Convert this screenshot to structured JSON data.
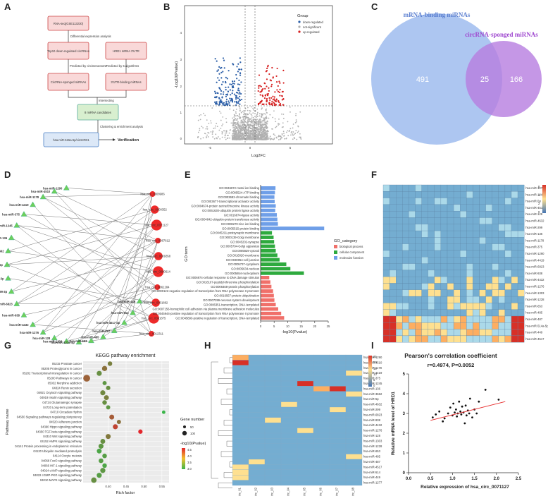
{
  "panels": {
    "A": "A",
    "B": "B",
    "C": "C",
    "D": "D",
    "E": "E",
    "F": "F",
    "G": "G",
    "H": "H",
    "I": "I"
  },
  "flowchart": {
    "box1": "RNA-seq(GSE113230)",
    "step1": "Differential expression analysis",
    "box2a": "Top10 down-regulated circRNAs",
    "box2b": "HRD1 mRNA 3'UTR",
    "pred_a": "Predicted by circinteractome",
    "pred_b": "Predicted by 5 algorithms",
    "box3a": "CircRNA-sponged miRNAs",
    "box3b": "3'UTR-binding miRNAs",
    "step2": "Intersecting",
    "box4": "8 miRNA candidates",
    "step3": "Clustering & enrichment analysis",
    "box5": "hsa-miR-515a-5p/circHRD1",
    "verify": "Verification"
  },
  "volcano": {
    "ylabel": "-Log10(Pvalue)",
    "xlabel": "Log2FC",
    "legend_title": "Group",
    "groups": [
      "down-regulated",
      "not-significant",
      "up-regulated"
    ],
    "colors": [
      "#2c5fa8",
      "#b0b0b0",
      "#d62020"
    ],
    "xticks": [
      "-5",
      "0",
      "5"
    ],
    "yticks": [
      "0",
      "1",
      "2",
      "3",
      "4"
    ]
  },
  "venn": {
    "left_label": "mRNA-binding miRNAs",
    "right_label": "circRNA-sponged miRNAs",
    "left_only": "491",
    "overlap": "25",
    "right_only": "166"
  },
  "network": {
    "labels": [
      "hsa-miR-1290",
      "hsa-miR-4510",
      "hsa-miR-1178",
      "hsa-miR-4419",
      "hsa-miR-375",
      "hsa-miR-1245",
      "hsa-miR-136",
      "hsa-miR-3662",
      "hsa-miR-5p",
      "hsa-miR-4632p-3p",
      "hsa-miR-299-3p",
      "hsa-miR-6823",
      "hsa-miR-938",
      "hsa-miR-4432",
      "hsa-miR-1276",
      "hsa-miR-128",
      "hsa-miR-1303",
      "hsa-miR-1228-5p",
      "hsa-miR-653",
      "hsa-miR-485",
      "hsa-miR-487",
      "hsa-miR-4517-3p",
      "hsa-miR-514",
      "hsa-miR-449",
      "hsa_circ_0008986",
      "hsa_circ_0000352",
      "hsa_circ_0071127",
      "hsa_circ_0067612",
      "hsa_circ_0009358",
      "hsa_circ_0000614",
      "hsa_circ_0061284",
      "hsa_circ_0001882",
      "hsa_circ_0061875",
      "hsa_circ_0012311"
    ]
  },
  "chart_data": [
    {
      "type": "bar",
      "title": "",
      "xlabel": "-log10(Pvalue)",
      "ylabel": "GO term",
      "xlim": [
        0,
        25
      ],
      "xticks": [
        "0",
        "5",
        "10",
        "15",
        "20",
        "25"
      ],
      "legend_title": "GO_category",
      "legend": [
        "biological process",
        "cellular component",
        "molecular function"
      ],
      "colors": {
        "biological process": "#f0706a",
        "cellular component": "#2eaa3e",
        "molecular function": "#6f9fe8"
      },
      "categories": [
        "GO:0046872-metal ion binding",
        "GO:0005524-ATP binding",
        "GO:0003682-chromatin binding",
        "GO:0003677-transcriptional activator activity",
        "GO:0004674-protein serine/threonine kinase activity",
        "GO:0061630-ubiquitin protein ligase activity",
        "GO:0016874-ligase activity",
        "GO:0004842-ubiquitin-protein transferase activity",
        "GO:0008270-zinc ion binding",
        "GO:0005515-protein binding",
        "GO:0045211-postsynaptic membrane",
        "GO:0000139-Golgi membrane",
        "GO:0045202-synapse",
        "GO:0005794-Golgi apparatus",
        "GO:0005829-cytosol",
        "GO:0016020-membrane",
        "GO:0030054-cell junction",
        "GO:0005737-cytoplasm",
        "GO:0005634-nucleus",
        "GO:0005654-nucleoplasm",
        "GO:0006974-cellular response to DNA damage stimulus",
        "GO:0018107-peptidyl-threonine phosphorylation",
        "GO:0006468-protein phosphorylation",
        "GO:0000122-negative regulation of transcription from RNA polymerase II promoter",
        "GO:0016567-protein ubiquitination",
        "GO:0007399-nervous system development",
        "GO:0006351-transcription, DNA-templated",
        "GO:0007156-homophilic cell adhesion via plasma membrane adhesion molecules",
        "GO:0045944-positive regulation of transcription from RNA polymerase II promoter",
        "GO:0045893-positive regulation of transcription, DNA-templated"
      ],
      "groups": [
        "molecular function",
        "molecular function",
        "molecular function",
        "molecular function",
        "molecular function",
        "molecular function",
        "molecular function",
        "molecular function",
        "molecular function",
        "molecular function",
        "cellular component",
        "cellular component",
        "cellular component",
        "cellular component",
        "cellular component",
        "cellular component",
        "cellular component",
        "cellular component",
        "cellular component",
        "cellular component",
        "biological process",
        "biological process",
        "biological process",
        "biological process",
        "biological process",
        "biological process",
        "biological process",
        "biological process",
        "biological process",
        "biological process"
      ],
      "values": [
        5.5,
        5.3,
        5.1,
        5.2,
        5.6,
        5.4,
        6.0,
        6.2,
        6.4,
        23.5,
        4.2,
        4.8,
        5.0,
        5.3,
        5.6,
        6.2,
        7.0,
        9.5,
        11.0,
        16.0,
        3.2,
        3.6,
        4.0,
        4.6,
        4.9,
        5.1,
        5.6,
        6.5,
        7.6,
        8.7
      ]
    },
    {
      "type": "scatter",
      "title": "KEGG pathway enrichment",
      "xlabel": "Rich factor",
      "ylabel": "Pathway name",
      "xlim": [
        0.33,
        0.57
      ],
      "xticks": [
        "0.40",
        "0.45",
        "0.50",
        "0.55"
      ],
      "size_legend_title": "Gene number",
      "size_legend": [
        "50",
        "100"
      ],
      "color_legend_title": "-log10(Pvalue)",
      "color_legend": [
        "4.5",
        "4.0",
        "3.5",
        "3.0"
      ],
      "categories": [
        "05215 Prostate cancer",
        "05205 Proteoglycans in cancer",
        "05202 Transcriptional misregulation in cancer",
        "05200 Pathways in cancer",
        "05032 Morphine addiction",
        "04824 Renin secretion",
        "04921 Oxytocin signaling pathway",
        "04919 Insulin signaling pathway",
        "04724 Glutamatergic synapse",
        "04720 Long-term potentiation",
        "04710 Circadian rhythm",
        "04550 Signaling pathways regulating pluripotency",
        "04520 Adherens junction",
        "04390 Hippo signaling pathway",
        "04350 TGF-beta signaling pathway",
        "04310 Wnt signaling pathway",
        "04152 AMPK signaling pathway",
        "04141 Protein processing in endoplasmic reticulum",
        "04120 Ubiquitin mediated proteolysis",
        "04114 Oocyte meiosis",
        "04068 FoxO signaling pathway",
        "04066 HIF-1 signaling pathway",
        "04024 cAMP signaling pathway",
        "04022 cGMP-PKG signaling pathway",
        "04010 MAPK signaling pathway"
      ],
      "x": [
        0.405,
        0.39,
        0.375,
        0.34,
        0.39,
        0.4,
        0.385,
        0.395,
        0.39,
        0.4,
        0.555,
        0.41,
        0.43,
        0.42,
        0.49,
        0.4,
        0.385,
        0.38,
        0.375,
        0.39,
        0.38,
        0.39,
        0.385,
        0.375,
        0.36
      ],
      "gene_number": [
        40,
        60,
        55,
        130,
        30,
        35,
        55,
        50,
        40,
        30,
        15,
        50,
        30,
        55,
        35,
        55,
        50,
        55,
        50,
        40,
        45,
        40,
        60,
        55,
        70
      ],
      "neglog10p": [
        3.6,
        3.8,
        3.4,
        4.0,
        3.3,
        3.4,
        3.5,
        3.6,
        3.4,
        3.3,
        2.9,
        4.1,
        3.8,
        4.4,
        4.8,
        3.7,
        3.4,
        3.3,
        3.1,
        3.2,
        3.2,
        3.1,
        3.3,
        3.2,
        3.4
      ]
    },
    {
      "type": "scatter",
      "title": "Pearson's correlation coefficient",
      "subtitle": "r=0.4974, P=0.0052",
      "xlabel": "Relative expression of hsa_circ_0071127",
      "ylabel": "Relative mRNA level of HRD1",
      "xlim": [
        0.0,
        2.5
      ],
      "ylim": [
        0,
        5
      ],
      "xticks": [
        "0.0",
        "0.5",
        "1.0",
        "1.5",
        "2.0",
        "2.5"
      ],
      "yticks": [
        "0",
        "1",
        "2",
        "3",
        "4",
        "5"
      ],
      "fit": {
        "x": [
          0.5,
          2.2
        ],
        "y": [
          2.65,
          3.6
        ]
      },
      "x": [
        0.55,
        0.62,
        0.7,
        0.78,
        0.82,
        0.9,
        0.95,
        1.0,
        1.02,
        1.05,
        1.08,
        1.1,
        1.12,
        1.15,
        1.18,
        1.2,
        1.22,
        1.25,
        1.28,
        1.3,
        1.32,
        1.35,
        1.38,
        1.4,
        1.45,
        1.5,
        1.55,
        1.6,
        1.75,
        2.05
      ],
      "y": [
        2.8,
        2.95,
        3.1,
        2.6,
        2.75,
        3.0,
        3.3,
        2.9,
        3.5,
        3.05,
        3.2,
        2.85,
        3.0,
        3.6,
        3.1,
        2.95,
        3.35,
        3.05,
        2.5,
        3.4,
        2.9,
        3.15,
        3.0,
        3.75,
        2.8,
        3.2,
        3.0,
        3.6,
        4.2,
        3.7
      ]
    }
  ],
  "heatmap_F": {
    "rows": [
      "hsa-miR-1277",
      "hsa-miR-1245b",
      "hsa-miR-5p",
      "hsa-miR-4510",
      "hsa-miR-128",
      "hsa-miR-4632",
      "hsa-miR-299",
      "hsa-miR-136",
      "hsa-miR-1178",
      "hsa-miR-375",
      "hsa-miR-1290",
      "hsa-miR-4419",
      "hsa-miR-6823",
      "hsa-miR-938",
      "hsa-miR-4432",
      "hsa-miR-1276",
      "hsa-miR-1303",
      "hsa-miR-1228",
      "hsa-miR-653",
      "hsa-miR-485",
      "hsa-miR-487",
      "hsa-miR-514a-5p",
      "hsa-miR-449",
      "hsa-miR-4517"
    ],
    "scale": [
      "6",
      "4",
      "2",
      "0"
    ]
  },
  "heatmap_H": {
    "rows": [
      "hsa-miR-1290",
      "hsa-miR-4510",
      "hsa-miR-1178",
      "hsa-miR-4419",
      "hsa-miR-375",
      "hsa-miR-1245",
      "hsa-miR-136",
      "hsa-miR-3662",
      "hsa-miR-5p",
      "hsa-miR-4632",
      "hsa-miR-299",
      "hsa-miR-6823",
      "hsa-miR-938",
      "hsa-miR-4432",
      "hsa-miR-1276",
      "hsa-miR-128",
      "hsa-miR-1303",
      "hsa-miR-1228",
      "hsa-miR-653",
      "hsa-miR-485",
      "hsa-miR-487",
      "hsa-miR-4517",
      "hsa-miR-514",
      "hsa-miR-449",
      "hsa-miR-1277"
    ],
    "cols": [
      "circ_01",
      "circ_02",
      "circ_03",
      "circ_04",
      "circ_05",
      "circ_06",
      "circ_07",
      "circ_08"
    ],
    "scale": [
      "25",
      "20",
      "15",
      "10",
      "5",
      "0"
    ]
  }
}
